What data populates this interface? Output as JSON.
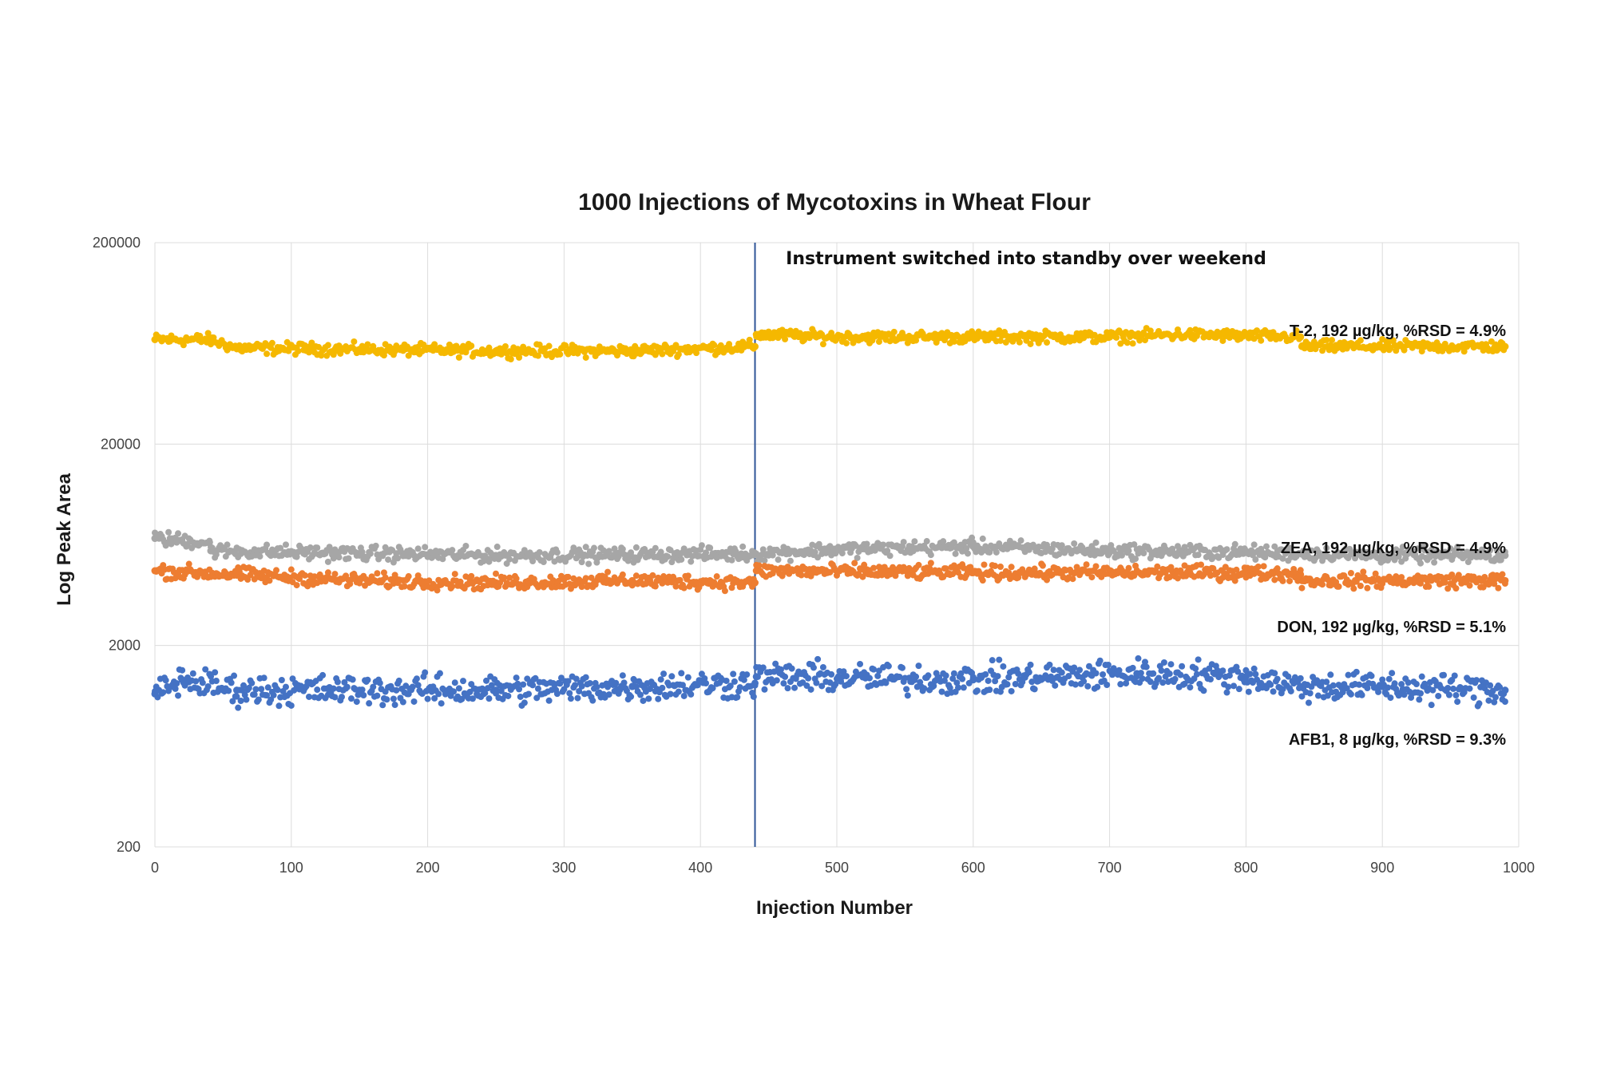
{
  "chart_data": {
    "type": "scatter",
    "title": "1000 Injections of Mycotoxins in Wheat Flour",
    "xlabel": "Injection Number",
    "ylabel": "Log Peak Area",
    "xlim": [
      0,
      1000
    ],
    "ylim": [
      200,
      200000
    ],
    "y_scale": "log",
    "x_ticks": [
      "0",
      "100",
      "200",
      "300",
      "400",
      "500",
      "600",
      "700",
      "800",
      "900",
      "1000"
    ],
    "y_ticks": [
      "200000",
      "20000",
      "2000",
      "200"
    ],
    "grid": true,
    "annotation": {
      "text": "Instrument switched into standby over weekend",
      "x": 440
    },
    "series": [
      {
        "name": "T-2, 192 µg/kg, %RSD = 4.9%",
        "color": "#F5B800",
        "x": [
          0,
          40,
          60,
          150,
          250,
          350,
          440,
          441,
          500,
          600,
          700,
          750,
          840,
          841,
          990
        ],
        "y": [
          66000,
          66000,
          60000,
          59000,
          58000,
          58000,
          61000,
          70000,
          68000,
          68000,
          68000,
          70000,
          68000,
          61000,
          61000
        ]
      },
      {
        "name": "ZEA, 192 µg/kg, %RSD = 4.9%",
        "color": "#A6A6A6",
        "x": [
          0,
          40,
          41,
          100,
          250,
          440,
          500,
          600,
          700,
          800,
          900,
          990
        ],
        "y": [
          6800,
          6500,
          5900,
          5800,
          5600,
          5700,
          6000,
          6200,
          5900,
          5800,
          5600,
          5600
        ]
      },
      {
        "name": "DON, 192 µg/kg, %RSD = 5.1%",
        "color": "#ED7D31",
        "x": [
          0,
          60,
          150,
          250,
          350,
          440,
          441,
          600,
          800,
          840,
          841,
          990
        ],
        "y": [
          4700,
          4500,
          4200,
          4100,
          4200,
          4100,
          4700,
          4600,
          4600,
          4500,
          4200,
          4200
        ]
      },
      {
        "name": "AFB1, 8 µg/kg, %RSD = 9.3%",
        "color": "#4472C4",
        "x": [
          0,
          20,
          60,
          150,
          250,
          350,
          440,
          441,
          600,
          720,
          800,
          840,
          900,
          990
        ],
        "y": [
          1150,
          1350,
          1200,
          1200,
          1200,
          1250,
          1300,
          1400,
          1350,
          1450,
          1400,
          1250,
          1250,
          1200
        ]
      }
    ]
  }
}
